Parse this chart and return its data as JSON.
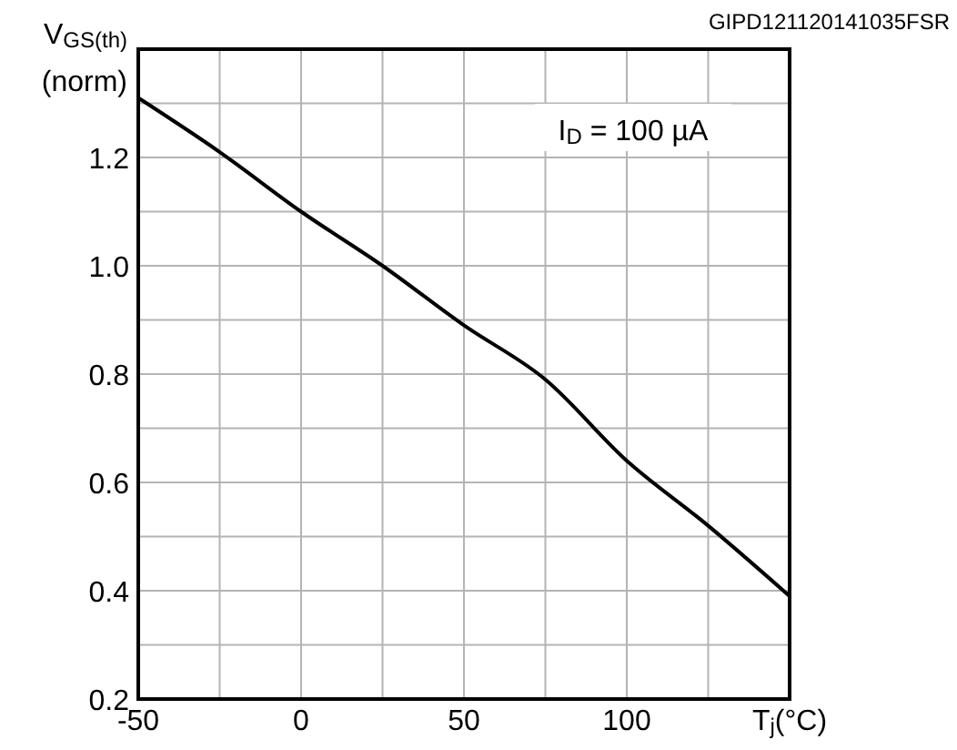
{
  "chart_data": {
    "type": "line",
    "xlabel": "T$_{j}$(°C)",
    "ylabel": "V$_{GS(th)}$\n(norm)",
    "annotations": [
      "I$_{D}$ = 100 µA",
      "GIPD121120141035FSR"
    ],
    "x": [
      -50,
      -25,
      0,
      25,
      50,
      75,
      100,
      125,
      150
    ],
    "series": [
      {
        "color": "#000000",
        "values": [
          1.31,
          1.21,
          1.1,
          1.0,
          0.89,
          0.79,
          0.64,
          0.52,
          0.39
        ]
      }
    ],
    "xlim": [
      -50,
      150
    ],
    "ylim": [
      0.2,
      1.4
    ],
    "xticks": [
      -50,
      {
        "value": -25,
        "label": null
      },
      0,
      {
        "value": 25,
        "label": null
      },
      50,
      {
        "value": 75,
        "label": null
      },
      100,
      {
        "value": 125,
        "label": null
      },
      {
        "value": 150,
        "label": null
      }
    ],
    "yticks": [
      0.2,
      {
        "value": 0.3,
        "label": null
      },
      0.4,
      {
        "value": 0.5,
        "label": null
      },
      0.6,
      {
        "value": 0.7,
        "label": null
      },
      0.8,
      {
        "value": 0.9,
        "label": null
      },
      {
        "value": 1.0,
        "label": "1.0"
      },
      {
        "value": 1.1,
        "label": null
      },
      1.2,
      {
        "value": 1.3,
        "label": null
      },
      {
        "value": 1.4,
        "label": null
      }
    ],
    "grid": true,
    "marker": "none",
    "line_style": "solid"
  }
}
